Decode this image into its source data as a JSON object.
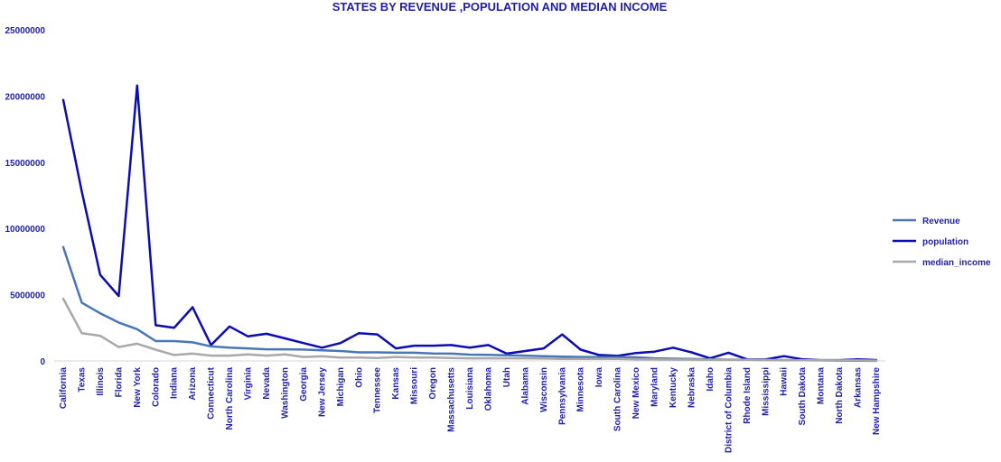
{
  "chart_data": {
    "type": "line",
    "title": "STATES BY REVENUE ,POPULATION AND MEDIAN INCOME",
    "xlabel": "",
    "ylabel": "",
    "ylim": [
      0,
      25000000
    ],
    "yticks": [
      "0",
      "5000000",
      "10000000",
      "15000000",
      "20000000",
      "25000000"
    ],
    "grid": false,
    "legend_position": "right",
    "categories": [
      "California",
      "Texas",
      "Illinois",
      "Florida",
      "New York",
      "Colorado",
      "Indiana",
      "Arizona",
      "Connecticut",
      "North Carolina",
      "Virginia",
      "Nevada",
      "Washington",
      "Georgia",
      "New Jersey",
      "Michigan",
      "Ohio",
      "Tennessee",
      "Kansas",
      "Missouri",
      "Oregon",
      "Massachusetts",
      "Louisiana",
      "Oklahoma",
      "Utah",
      "Alabama",
      "Wisconsin",
      "Pennsylvania",
      "Minnesota",
      "Iowa",
      "South Carolina",
      "New Mexico",
      "Maryland",
      "Kentucky",
      "Nebraska",
      "Idaho",
      "District of Columbia",
      "Rhode Island",
      "Mississippi",
      "Hawaii",
      "South Dakota",
      "Montana",
      "North Dakota",
      "Arkansas",
      "New Hampshire"
    ],
    "series": [
      {
        "name": "Revenue",
        "color": "#4a76b8",
        "values": [
          8600000,
          4400000,
          3600000,
          2900000,
          2400000,
          1500000,
          1500000,
          1400000,
          1100000,
          1000000,
          950000,
          880000,
          880000,
          860000,
          800000,
          750000,
          650000,
          650000,
          620000,
          620000,
          560000,
          550000,
          480000,
          460000,
          420000,
          400000,
          360000,
          330000,
          300000,
          290000,
          280000,
          270000,
          200000,
          170000,
          150000,
          120000,
          100000,
          90000,
          80000,
          60000,
          50000,
          40000,
          30000,
          20000,
          10000
        ]
      },
      {
        "name": "population",
        "color": "#0c0cb4",
        "values": [
          19700000,
          12800000,
          6500000,
          4900000,
          20800000,
          2700000,
          2500000,
          4050000,
          1200000,
          2600000,
          1850000,
          2050000,
          1700000,
          1350000,
          1000000,
          1350000,
          2100000,
          2000000,
          950000,
          1150000,
          1150000,
          1200000,
          1000000,
          1200000,
          550000,
          750000,
          950000,
          2000000,
          850000,
          450000,
          380000,
          600000,
          700000,
          1000000,
          650000,
          200000,
          620000,
          120000,
          110000,
          360000,
          120000,
          60000,
          60000,
          120000,
          70000
        ]
      },
      {
        "name": "median_income",
        "color": "#a8a8a8",
        "values": [
          4700000,
          2100000,
          1900000,
          1050000,
          1300000,
          850000,
          450000,
          550000,
          400000,
          400000,
          500000,
          400000,
          500000,
          300000,
          350000,
          250000,
          250000,
          220000,
          300000,
          250000,
          250000,
          220000,
          200000,
          200000,
          200000,
          200000,
          180000,
          150000,
          150000,
          150000,
          150000,
          120000,
          120000,
          100000,
          100000,
          80000,
          80000,
          80000,
          60000,
          60000,
          50000,
          50000,
          40000,
          40000,
          30000
        ]
      }
    ]
  }
}
